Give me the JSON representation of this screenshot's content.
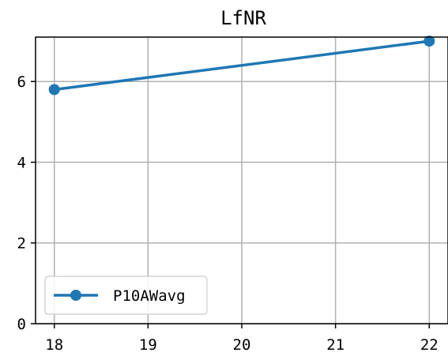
{
  "chart_data": {
    "type": "line",
    "title": "LfNR",
    "xlabel": "",
    "ylabel": "",
    "x": [
      18,
      22
    ],
    "series": [
      {
        "name": "P10AWavg",
        "values": [
          5.8,
          7.0
        ]
      }
    ],
    "xlim": [
      17.8,
      22.2
    ],
    "ylim": [
      0,
      7.1
    ],
    "xticks": [
      18,
      19,
      20,
      21,
      22
    ],
    "yticks": [
      0,
      2,
      4,
      6
    ],
    "grid": true,
    "legend_position": "lower-left",
    "colors": {
      "series": "#1f77b4",
      "grid": "#b0b0b0",
      "axis": "#000000"
    }
  }
}
